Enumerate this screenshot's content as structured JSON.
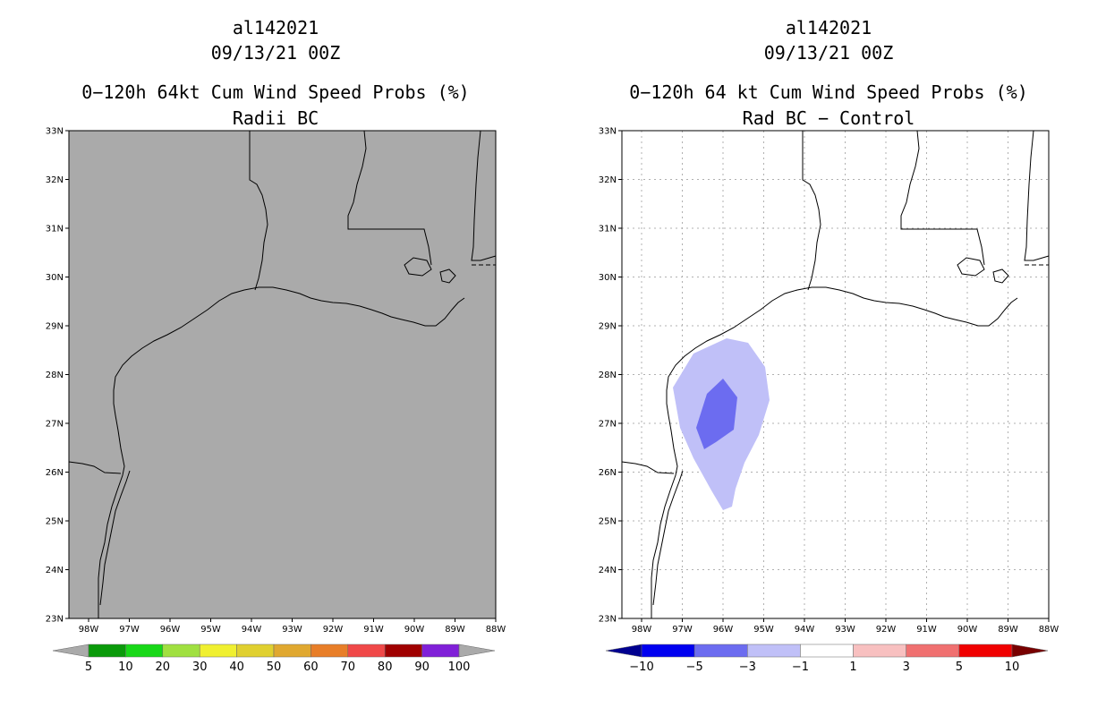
{
  "left_panel": {
    "storm_id": "al142021",
    "datetime": "09/13/21 00Z",
    "title": "0−120h 64kt Cum Wind Speed Probs (%)",
    "subtitle": "Radii BC",
    "background_color": "#aaaaaa"
  },
  "right_panel": {
    "storm_id": "al142021",
    "datetime": "09/13/21 00Z",
    "title": "0−120h 64 kt Cum Wind Speed Probs (%)",
    "subtitle": "Rad BC − Control"
  },
  "axes": {
    "lat_labels": [
      "33N",
      "32N",
      "31N",
      "30N",
      "29N",
      "28N",
      "27N",
      "26N",
      "25N",
      "24N",
      "23N"
    ],
    "lon_labels": [
      "98W",
      "97W",
      "96W",
      "95W",
      "94W",
      "93W",
      "92W",
      "91W",
      "90W",
      "89W",
      "88W"
    ]
  },
  "left_colorbar": {
    "labels": [
      "5",
      "10",
      "20",
      "30",
      "40",
      "50",
      "60",
      "70",
      "80",
      "90",
      "100"
    ],
    "colors": [
      "#aaaaaa",
      "#0a9a0a",
      "#18d818",
      "#a0e040",
      "#f0f030",
      "#e0d030",
      "#e0a830",
      "#e87e28",
      "#f04848",
      "#a00000",
      "#8020d8",
      "#aaaaaa"
    ]
  },
  "right_colorbar": {
    "labels": [
      "−10",
      "−5",
      "−3",
      "−1",
      "1",
      "3",
      "5",
      "10"
    ],
    "colors": [
      "#000090",
      "#0000f0",
      "#6c6cf0",
      "#c0c0f8",
      "#ffffff",
      "#f8c0c0",
      "#f07070",
      "#f00000",
      "#780000"
    ]
  },
  "map": {
    "outer_contour_color": "#c0c0f8",
    "inner_contour_color": "#6c6cf0",
    "outer_contour_range": "-3 to -1",
    "inner_contour_range": "-5 to -3"
  }
}
